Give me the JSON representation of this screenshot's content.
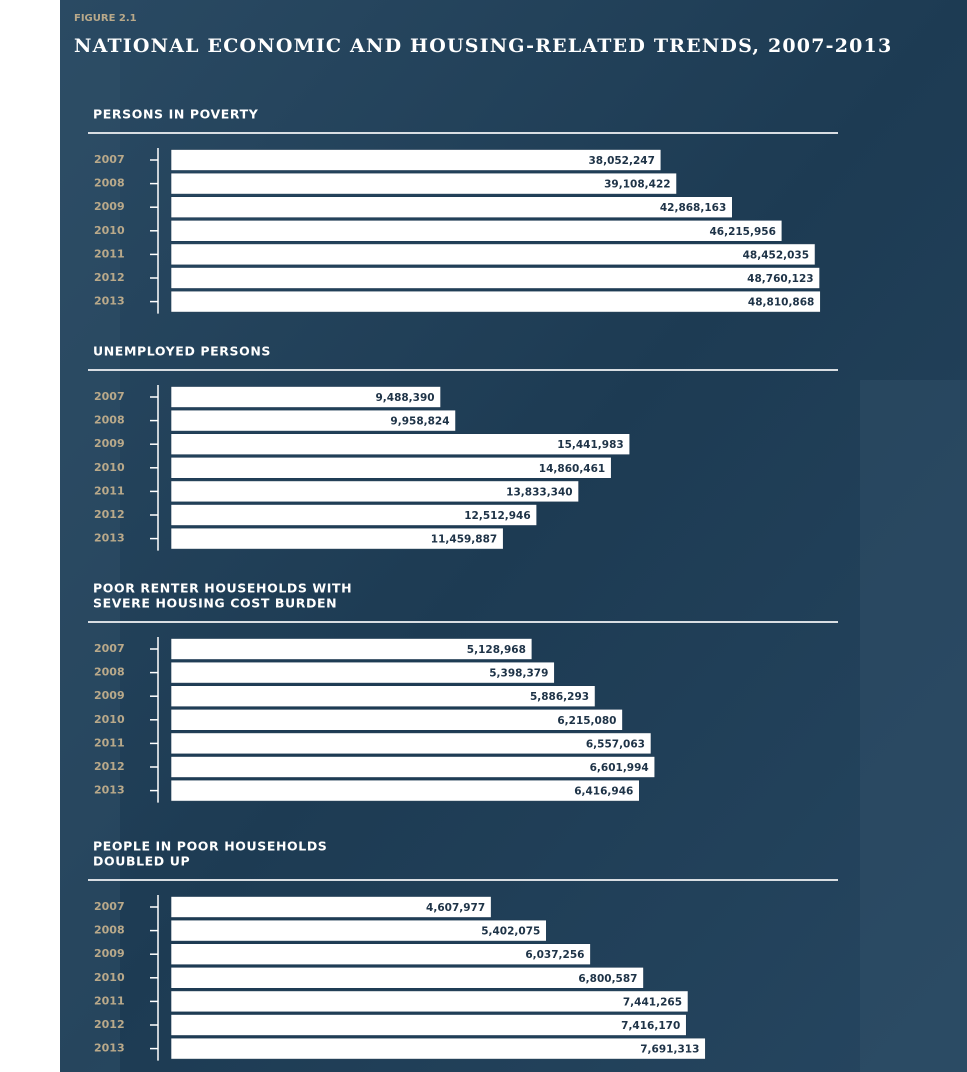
{
  "figure_label": "FIGURE 2.1",
  "title": "NATIONAL ECONOMIC AND HOUSING-RELATED TRENDS, 2007-2013",
  "chart_data": [
    {
      "type": "bar",
      "orientation": "horizontal",
      "title": [
        "PERSONS IN POVERTY"
      ],
      "categories": [
        "2007",
        "2008",
        "2009",
        "2010",
        "2011",
        "2012",
        "2013"
      ],
      "values": [
        38052247,
        39108422,
        42868163,
        46215956,
        48452035,
        48760123,
        48810868
      ],
      "value_labels": [
        "38,052,247",
        "39,108,422",
        "42,868,163",
        "46,215,956",
        "48,452,035",
        "48,760,123",
        "48,810,868"
      ],
      "xlim": [
        5000000,
        50000000
      ],
      "color": "#ffffff"
    },
    {
      "type": "bar",
      "orientation": "horizontal",
      "title": [
        "UNEMPLOYED PERSONS"
      ],
      "categories": [
        "2007",
        "2008",
        "2009",
        "2010",
        "2011",
        "2012",
        "2013"
      ],
      "values": [
        9488390,
        9958824,
        15441983,
        14860461,
        13833340,
        12512946,
        11459887
      ],
      "value_labels": [
        "9,488,390",
        "9,958,824",
        "15,441,983",
        "14,860,461",
        "13,833,340",
        "12,512,946",
        "11,459,887"
      ],
      "xlim": [
        1000000,
        22000000
      ],
      "color": "#ffffff"
    },
    {
      "type": "bar",
      "orientation": "horizontal",
      "title": [
        "POOR RENTER HOUSEHOLDS WITH",
        "SEVERE HOUSING COST BURDEN"
      ],
      "categories": [
        "2007",
        "2008",
        "2009",
        "2010",
        "2011",
        "2012",
        "2013"
      ],
      "values": [
        5128968,
        5398379,
        5886293,
        6215080,
        6557063,
        6601994,
        6416946
      ],
      "value_labels": [
        "5,128,968",
        "5,398,379",
        "5,886,293",
        "6,215,080",
        "6,557,063",
        "6,601,994",
        "6,416,946"
      ],
      "xlim": [
        800000,
        8800000
      ],
      "color": "#ffffff"
    },
    {
      "type": "bar",
      "orientation": "horizontal",
      "title": [
        "PEOPLE IN POOR HOUSEHOLDS",
        "DOUBLED UP"
      ],
      "categories": [
        "2007",
        "2008",
        "2009",
        "2010",
        "2011",
        "2012",
        "2013"
      ],
      "values": [
        4607977,
        5402075,
        6037256,
        6800587,
        7441265,
        7416170,
        7691313
      ],
      "value_labels": [
        "4,607,977",
        "5,402,075",
        "6,037,256",
        "6,800,587",
        "7,441,265",
        "7,416,170",
        "7,691,313"
      ],
      "xlim": [
        0,
        9600000
      ],
      "color": "#ffffff"
    }
  ]
}
